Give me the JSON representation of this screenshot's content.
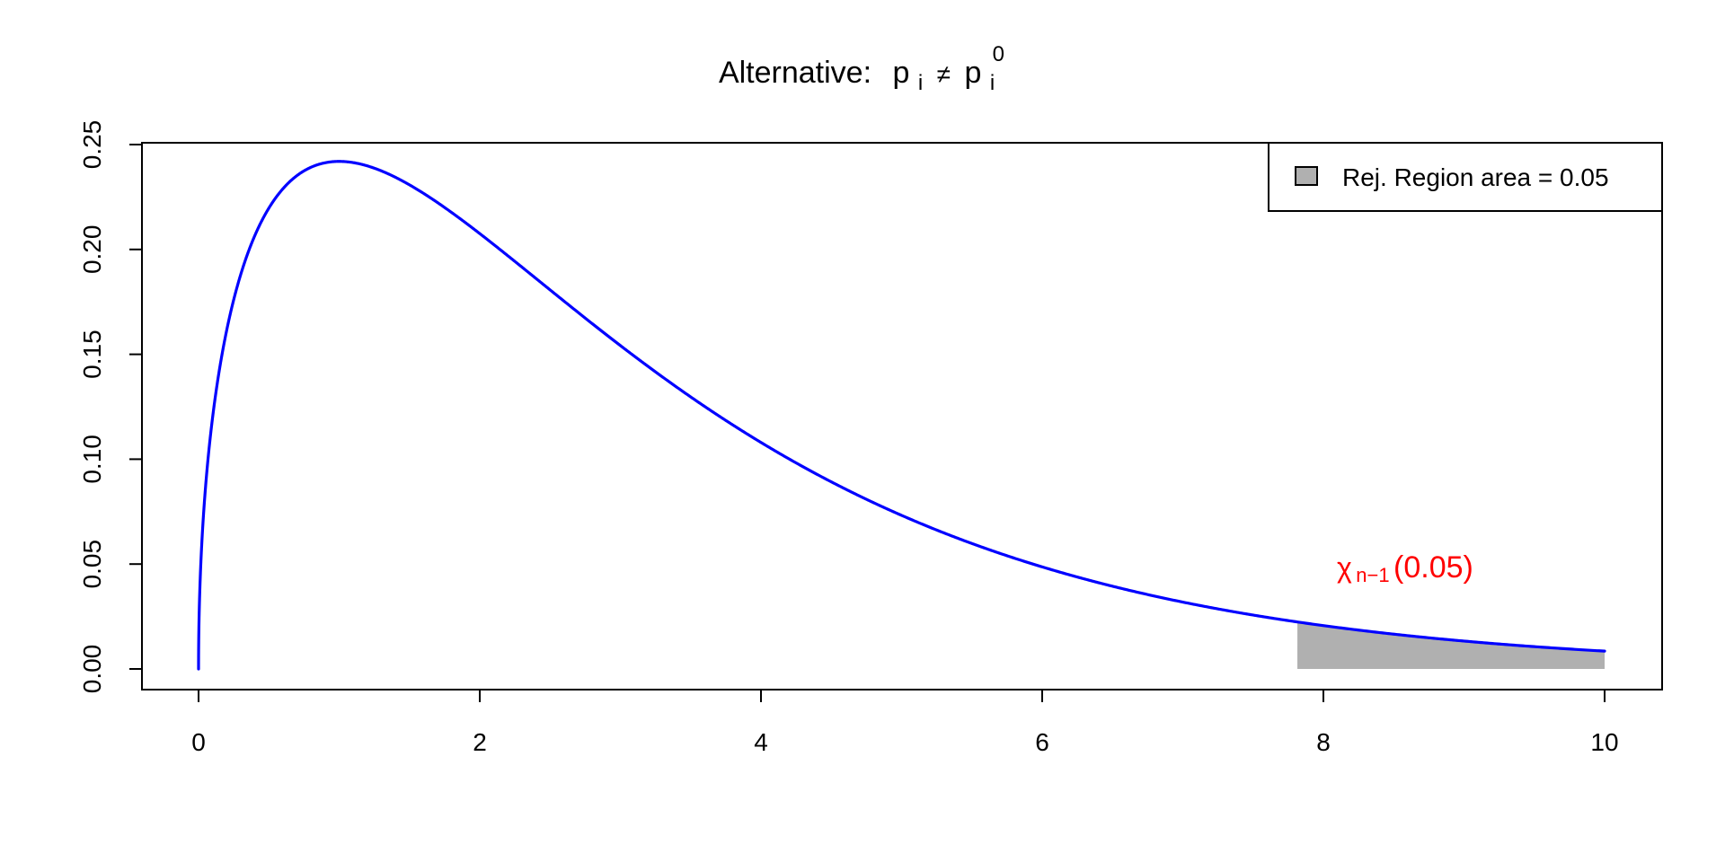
{
  "chart_data": {
    "type": "area",
    "title_prefix": "Alternative:",
    "title_math": {
      "lhs": "p",
      "lhs_sub": "i",
      "op": "≠",
      "rhs": "p",
      "rhs_sub": "i",
      "rhs_sup": "0"
    },
    "xlabel": "",
    "ylabel": "",
    "xlim": [
      0,
      10
    ],
    "ylim": [
      0,
      0.25
    ],
    "x_ticks": [
      "0",
      "2",
      "4",
      "6",
      "8",
      "10"
    ],
    "y_ticks": [
      "0.00",
      "0.05",
      "0.10",
      "0.15",
      "0.20",
      "0.25"
    ],
    "grid": false,
    "distribution": "chi-squared",
    "degrees_of_freedom": 3,
    "series": [
      {
        "x": [
          0,
          0.001,
          0.01,
          0.05,
          0.1,
          0.2,
          0.3,
          0.5,
          0.75,
          1,
          1.25,
          1.5,
          2,
          2.5,
          3,
          3.5,
          4,
          5,
          6,
          7,
          7.815,
          8,
          9,
          10
        ],
        "y": [
          0,
          0.0126,
          0.0397,
          0.0876,
          0.12,
          0.1614,
          0.188,
          0.2197,
          0.2372,
          0.242,
          0.2396,
          0.2313,
          0.2076,
          0.1804,
          0.1542,
          0.1305,
          0.108,
          0.0732,
          0.0489,
          0.032,
          0.0223,
          0.0206,
          0.0133,
          0.0085
        ],
        "color": "#0000ff"
      }
    ],
    "rejection_region": {
      "x_from": 7.815,
      "x_to": 10,
      "area": 0.05,
      "fill": "#b0b0b0"
    },
    "legend": {
      "label": "Rej. Region area = 0.05",
      "placement": "top-right",
      "swatch_color": "#b0b0b0"
    },
    "annotation": {
      "symbol": "χ",
      "sub": "n−1",
      "text": "(0.05)",
      "color": "#ff0000"
    }
  }
}
